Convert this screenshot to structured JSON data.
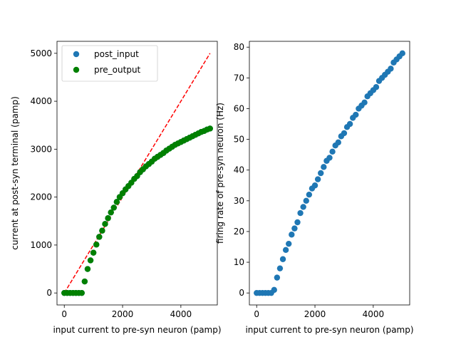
{
  "chart_data": [
    {
      "type": "scatter",
      "xlabel": "input current to pre-syn neuron (pamp)",
      "ylabel": "current at post-syn terminal (pamp)",
      "xlim": [
        -250,
        5250
      ],
      "ylim": [
        -250,
        5250
      ],
      "x_ticks": [
        0,
        2000,
        4000
      ],
      "y_ticks": [
        0,
        1000,
        2000,
        3000,
        4000,
        5000
      ],
      "legend": {
        "placement": "upper-left",
        "entries": [
          "post_input",
          "pre_output"
        ]
      },
      "series": [
        {
          "name": "post_input",
          "color": "#1f77b4",
          "x": [
            0,
            100,
            200,
            300,
            400,
            500,
            600,
            700,
            800,
            900,
            1000,
            1100,
            1200,
            1300,
            1400,
            1500,
            1600,
            1700,
            1800,
            1900,
            2000,
            2100,
            2200,
            2300,
            2400,
            2500,
            2600,
            2700,
            2800,
            2900,
            3000,
            3100,
            3200,
            3300,
            3400,
            3500,
            3600,
            3700,
            3800,
            3900,
            4000,
            4100,
            4200,
            4300,
            4400,
            4500,
            4600,
            4700,
            4800,
            4900,
            5000
          ],
          "y": [
            0,
            0,
            0,
            0,
            0,
            0,
            0,
            240,
            500,
            680,
            840,
            1010,
            1170,
            1300,
            1440,
            1560,
            1680,
            1780,
            1900,
            2000,
            2080,
            2160,
            2230,
            2300,
            2380,
            2440,
            2520,
            2580,
            2640,
            2690,
            2740,
            2800,
            2840,
            2880,
            2920,
            2970,
            3010,
            3050,
            3090,
            3120,
            3150,
            3180,
            3210,
            3240,
            3270,
            3300,
            3330,
            3360,
            3380,
            3410,
            3430
          ]
        },
        {
          "name": "pre_output",
          "color": "#008000",
          "x": [
            0,
            100,
            200,
            300,
            400,
            500,
            600,
            700,
            800,
            900,
            1000,
            1100,
            1200,
            1300,
            1400,
            1500,
            1600,
            1700,
            1800,
            1900,
            2000,
            2100,
            2200,
            2300,
            2400,
            2500,
            2600,
            2700,
            2800,
            2900,
            3000,
            3100,
            3200,
            3300,
            3400,
            3500,
            3600,
            3700,
            3800,
            3900,
            4000,
            4100,
            4200,
            4300,
            4400,
            4500,
            4600,
            4700,
            4800,
            4900,
            5000
          ],
          "y": [
            0,
            0,
            0,
            0,
            0,
            0,
            0,
            240,
            500,
            680,
            840,
            1010,
            1170,
            1300,
            1440,
            1560,
            1680,
            1780,
            1900,
            2000,
            2080,
            2160,
            2230,
            2300,
            2380,
            2440,
            2520,
            2580,
            2640,
            2690,
            2740,
            2800,
            2840,
            2880,
            2920,
            2970,
            3010,
            3050,
            3090,
            3120,
            3150,
            3180,
            3210,
            3240,
            3270,
            3300,
            3330,
            3360,
            3380,
            3410,
            3430
          ]
        }
      ],
      "reference_line": {
        "style": "dashed",
        "color": "#ff0000",
        "x": [
          0,
          5000
        ],
        "y": [
          0,
          5000
        ]
      }
    },
    {
      "type": "scatter",
      "xlabel": "input current to pre-syn neuron (pamp)",
      "ylabel": "firing rate of pre-syn neuron (Hz)",
      "xlim": [
        -250,
        5250
      ],
      "ylim": [
        -3.9,
        81.9
      ],
      "x_ticks": [
        0,
        2000,
        4000
      ],
      "y_ticks": [
        0,
        10,
        20,
        30,
        40,
        50,
        60,
        70,
        80
      ],
      "series": [
        {
          "color": "#1f77b4",
          "x": [
            0,
            100,
            200,
            300,
            400,
            500,
            600,
            700,
            800,
            900,
            1000,
            1100,
            1200,
            1300,
            1400,
            1500,
            1600,
            1700,
            1800,
            1900,
            2000,
            2100,
            2200,
            2300,
            2400,
            2500,
            2600,
            2700,
            2800,
            2900,
            3000,
            3100,
            3200,
            3300,
            3400,
            3500,
            3600,
            3700,
            3800,
            3900,
            4000,
            4100,
            4200,
            4300,
            4400,
            4500,
            4600,
            4700,
            4800,
            4900,
            5000
          ],
          "y": [
            0,
            0,
            0,
            0,
            0,
            0,
            1,
            5,
            8,
            11,
            14,
            16,
            19,
            21,
            23,
            26,
            28,
            30,
            32,
            34,
            35,
            37,
            39,
            41,
            43,
            44,
            46,
            48,
            49,
            51,
            52,
            54,
            55,
            57,
            58,
            60,
            61,
            62,
            64,
            65,
            66,
            67,
            69,
            70,
            71,
            72,
            73,
            75,
            76,
            77,
            78
          ]
        }
      ]
    }
  ]
}
